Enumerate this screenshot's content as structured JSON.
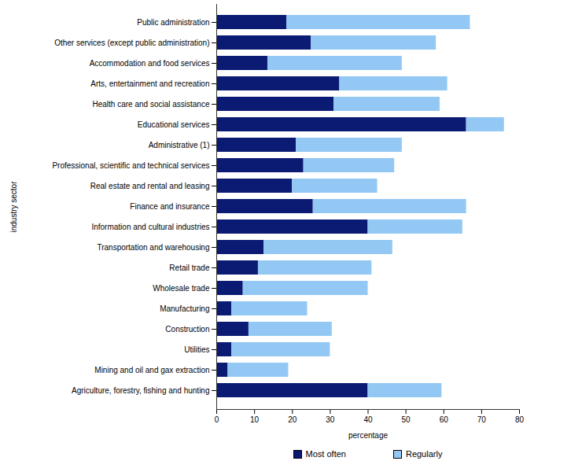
{
  "chart_data": {
    "type": "bar",
    "orientation": "horizontal",
    "stacked": true,
    "grid": false,
    "legend": "bottom",
    "x_label": "percentage",
    "y_label": "industry sector",
    "categories": [
      "Public administration",
      "Other services (except public administration)",
      "Accommodation and food services",
      "Arts, entertainment and recreation",
      "Health care and social assistance",
      "Educational services",
      "Administrative (1)",
      "Professional, scientific and technical services",
      "Real estate and rental and leasing",
      "Finance and insurance",
      "Information and cultural industries",
      "Transportation and warehousing",
      "Retail trade",
      "Wholesale trade",
      "Manufacturing",
      "Construction",
      "Utilities",
      "Mining and oil and gax extraction",
      "Agriculture, forestry, fishing and hunting"
    ],
    "series": [
      {
        "name": "Most often",
        "color": "#0b1a72",
        "values": [
          18.5,
          25,
          13.5,
          32.5,
          31,
          66,
          21,
          23,
          20,
          25.5,
          40,
          12.5,
          11,
          7,
          4,
          8.5,
          4,
          3,
          40
        ]
      },
      {
        "name": "Regularly",
        "color": "#92c8f3",
        "values": [
          48.5,
          33,
          35.5,
          28.5,
          28,
          10,
          28,
          24,
          22.5,
          40.5,
          25,
          34,
          30,
          33,
          20,
          22,
          26,
          16,
          19.5
        ]
      }
    ],
    "xlim": [
      0,
      80
    ],
    "xticks": [
      0,
      10,
      20,
      30,
      40,
      50,
      60,
      70,
      80
    ]
  }
}
